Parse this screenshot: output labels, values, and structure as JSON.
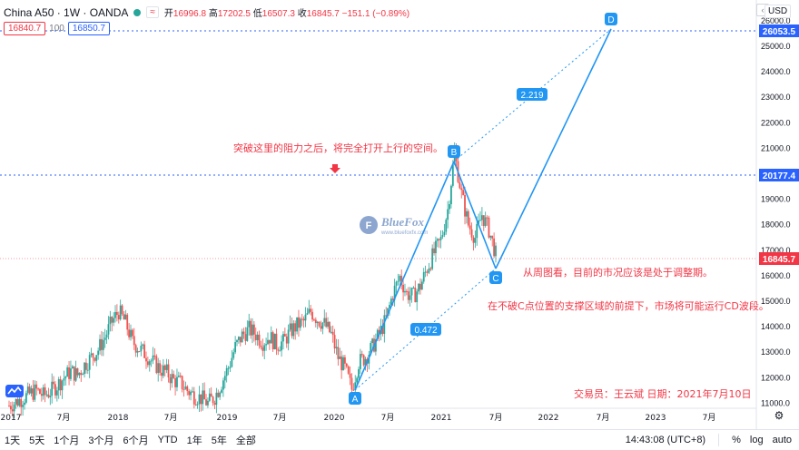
{
  "header": {
    "symbol": "China A50 · 1W · OANDA",
    "badge": "≈",
    "open_label": "开",
    "open": "16996.8",
    "high_label": "高",
    "high": "17202.5",
    "low_label": "低",
    "low": "16507.3",
    "close_label": "收",
    "close": "16845.7",
    "change": "−151.1 (−0.89%)",
    "bid": "16840.7",
    "qty": "100",
    "ask": "16850.7"
  },
  "currency": "USD",
  "collapse_glyph": "‹",
  "price_axis": {
    "ticks": [
      "26000.0",
      "25000.0",
      "24000.0",
      "23000.0",
      "22000.0",
      "21000.0",
      "20000.0",
      "19000.0",
      "18000.0",
      "17000.0",
      "16000.0",
      "15000.0",
      "14000.0",
      "13000.0",
      "12000.0",
      "11000.0"
    ],
    "marker_d": "26053.5",
    "marker_b": "20177.4",
    "marker_last": "16845.7"
  },
  "time_axis": {
    "labels": [
      "2017",
      "7月",
      "2018",
      "7月",
      "2019",
      "7月",
      "2020",
      "7月",
      "2021",
      "7月",
      "2022",
      "7月",
      "2023",
      "7月"
    ]
  },
  "pattern": {
    "points": {
      "A": "A",
      "B": "B",
      "C": "C",
      "D": "D"
    },
    "ratio_ab": "0.472",
    "ratio_cd": "2.219"
  },
  "annotations": {
    "resistance": "突破这里的阻力之后，将完全打开上行的空间。",
    "weekly": "从周图看，目前的市况应该是处于调整期。",
    "support": "在不破C点位置的支撑区域的前提下，市场将可能运行CD波段。",
    "trader": "交易员：王云斌   日期：2021年7月10日"
  },
  "watermark": {
    "name": "BlueFox",
    "url": "www.bluefoxfx.com"
  },
  "bottom_bar": {
    "timeframes": [
      "1天",
      "5天",
      "1个月",
      "3个月",
      "6个月",
      "YTD",
      "1年",
      "5年",
      "全部"
    ],
    "time": "14:43:08 (UTC+8)",
    "percent": "%",
    "log": "log",
    "auto": "auto"
  },
  "colors": {
    "up": "#26a69a",
    "down": "#ef5350",
    "pattern": "#2196f3",
    "annotation": "#f23645"
  },
  "chart_data": {
    "type": "candlestick",
    "interval": "1W",
    "ylim": [
      10800,
      26600
    ],
    "harmonic": {
      "A": {
        "date": "2020-03",
        "price": 11550
      },
      "B": {
        "date": "2021-02",
        "price": 20800
      },
      "C": {
        "date": "2021-07",
        "price": 16380
      },
      "D": {
        "date": "2022-07",
        "price": 26050
      }
    },
    "levels": [
      26053.5,
      20177.4,
      16845.7
    ],
    "series_monthly_close": [
      10900,
      11050,
      11200,
      11350,
      11500,
      11300,
      11450,
      11700,
      12000,
      12250,
      12100,
      12500,
      12800,
      13100,
      13600,
      14200,
      14600,
      14150,
      13400,
      13150,
      12900,
      12600,
      12350,
      12200,
      11900,
      11800,
      11500,
      11300,
      11200,
      11000,
      11250,
      11800,
      12400,
      13200,
      13650,
      13900,
      13700,
      13400,
      13600,
      13300,
      13400,
      13800,
      14050,
      14200,
      14600,
      14300,
      14100,
      13700,
      12800,
      12350,
      11550,
      12600,
      12800,
      13200,
      13700,
      14300,
      15300,
      15950,
      15300,
      15200,
      15600,
      16300,
      16900,
      17400,
      18600,
      20800,
      19200,
      18000,
      17500,
      18400,
      17800,
      16845
    ]
  }
}
